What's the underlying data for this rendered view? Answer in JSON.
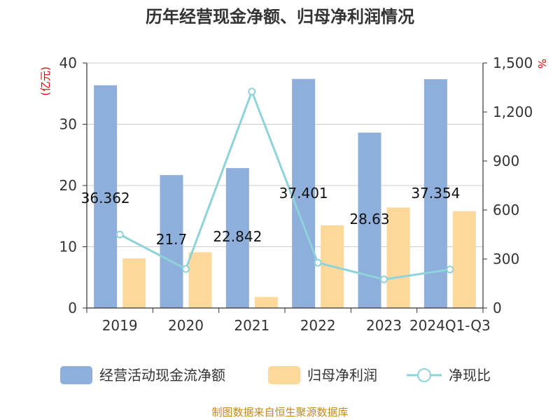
{
  "chart_data": {
    "type": "bar",
    "title": "历年经营现金净额、归母净利润情况",
    "categories": [
      "2019",
      "2020",
      "2021",
      "2022",
      "2023",
      "2024Q1-Q3"
    ],
    "y_left": {
      "unit": "(亿元)",
      "range": [
        0,
        40
      ],
      "ticks": [
        "0",
        "10",
        "20",
        "30",
        "40"
      ]
    },
    "y_right": {
      "unit": "%",
      "range": [
        0,
        1500
      ],
      "ticks": [
        "0",
        "300",
        "600",
        "900",
        "1,200",
        "1,500"
      ]
    },
    "series": [
      {
        "name": "经营活动现金流净额",
        "type": "bar",
        "axis": "left",
        "color": "#8eaedb",
        "values": [
          36.362,
          21.7,
          22.842,
          37.401,
          28.63,
          37.354
        ],
        "labels": [
          "36.362",
          "21.7",
          "22.842",
          "37.401",
          "28.63",
          "37.354"
        ]
      },
      {
        "name": "归母净利润",
        "type": "bar",
        "axis": "left",
        "color": "#fdd89b",
        "values": [
          8.1,
          9.1,
          1.8,
          13.5,
          16.4,
          15.8
        ]
      },
      {
        "name": "净现比",
        "type": "line",
        "axis": "right",
        "color": "#8ed3d9",
        "values": [
          450,
          239,
          1325,
          277,
          175,
          236
        ]
      }
    ],
    "grid": true,
    "legend": "bottom"
  },
  "source": "制图数据来自恒生聚源数据库"
}
